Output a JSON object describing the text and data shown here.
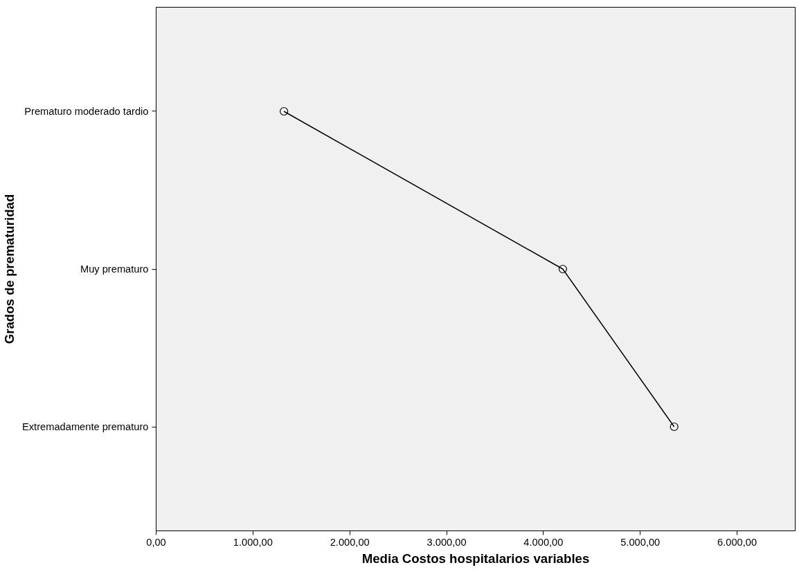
{
  "chart_data": {
    "type": "line",
    "orientation": "horizontal",
    "xlabel": "Media Costos hospitalarios variables",
    "ylabel": "Grados de prematuridad",
    "categories": [
      "Prematuro moderado tardio",
      "Muy prematuro",
      "Extremadamente prematuro"
    ],
    "series": [
      {
        "color": "#000000",
        "values": [
          1320,
          4200,
          5350
        ]
      }
    ],
    "xlim": [
      0,
      6600
    ],
    "xticks": [
      {
        "value": 0,
        "label": "0,00"
      },
      {
        "value": 1000,
        "label": "1.000,00"
      },
      {
        "value": 2000,
        "label": "2.000,00"
      },
      {
        "value": 3000,
        "label": "3.000,00"
      },
      {
        "value": 4000,
        "label": "4.000,00"
      },
      {
        "value": 5000,
        "label": "5.000,00"
      },
      {
        "value": 6000,
        "label": "6.000,00"
      }
    ],
    "marker": "circle",
    "line_style": "solid",
    "grid": false
  }
}
